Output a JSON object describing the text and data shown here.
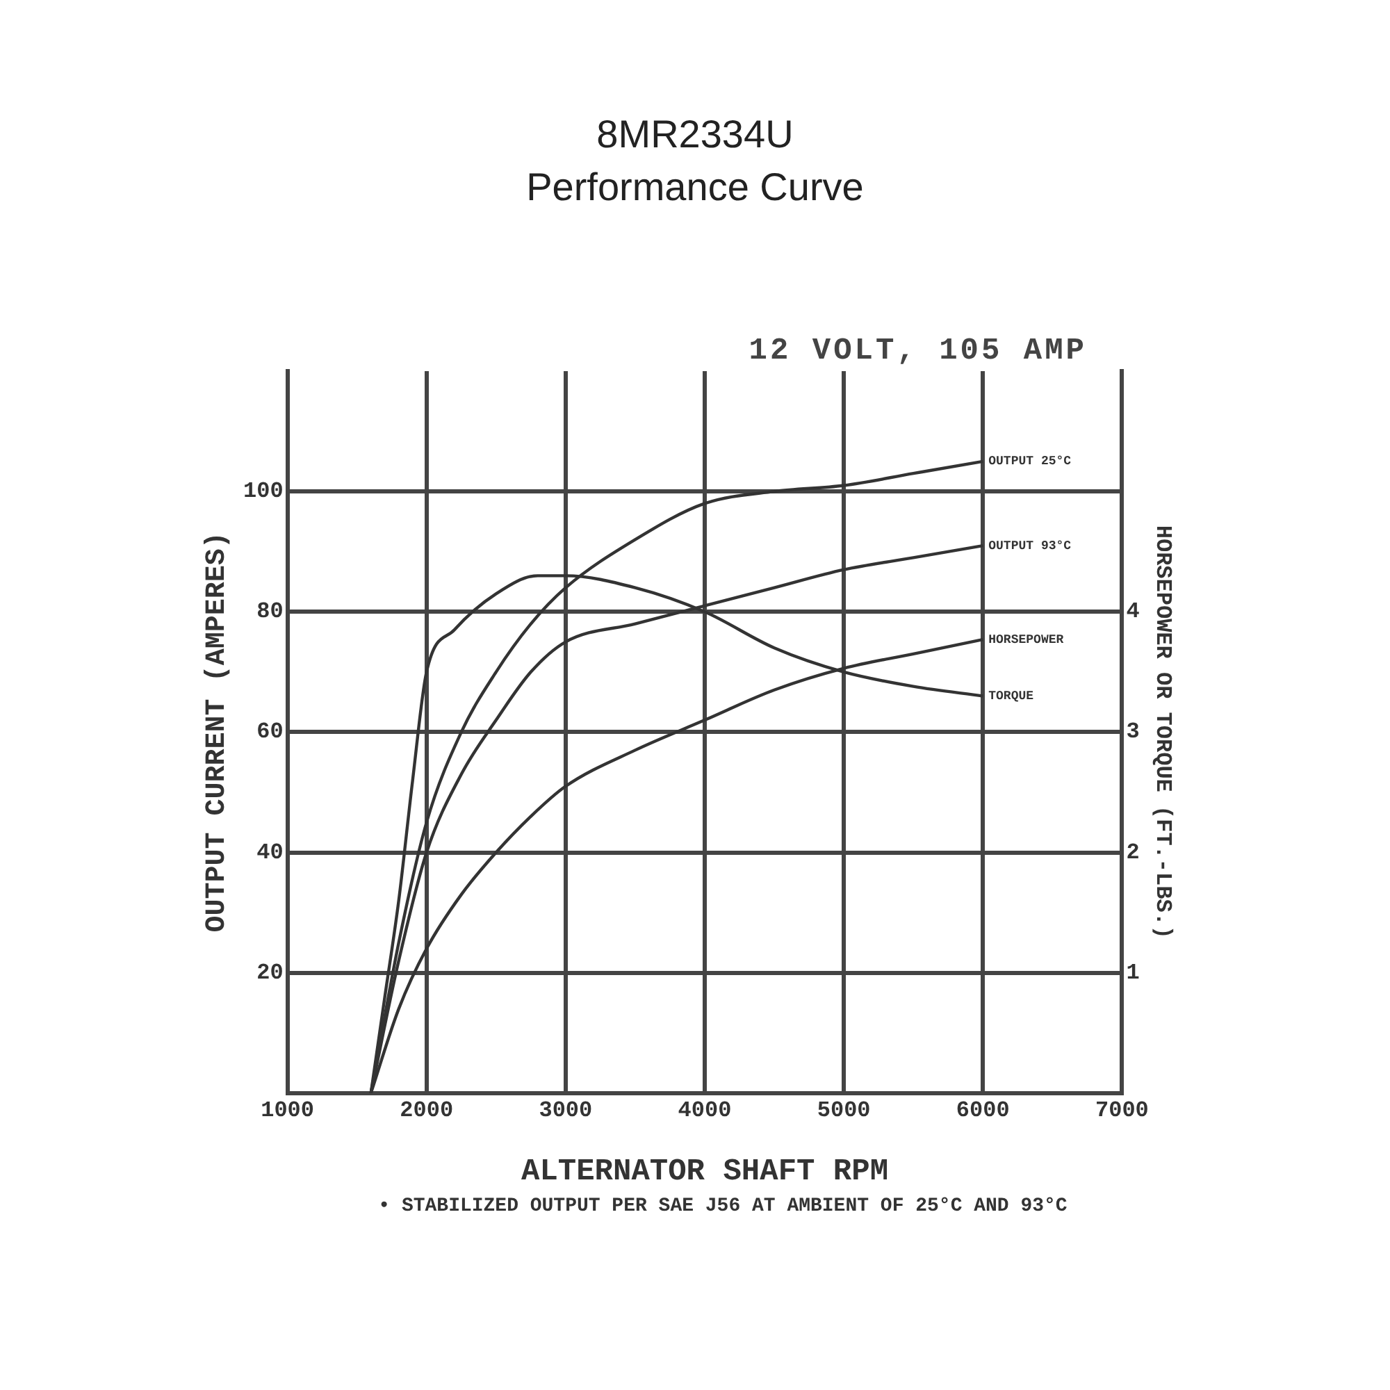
{
  "chart_data": {
    "type": "line",
    "title": "8MR2334U\nPerformance Curve",
    "subtitle": "12 VOLT, 105 AMP",
    "xlabel": "ALTERNATOR SHAFT RPM",
    "ylabel": "OUTPUT CURRENT (AMPERES)",
    "y2label": "HORSEPOWER OR TORQUE (FT.-LBS.)",
    "annotations": [
      "• STABILIZED OUTPUT PER SAE J56 AT AMBIENT OF 25°C AND 93°C"
    ],
    "xlim": [
      1000,
      7000
    ],
    "xticks": [
      1000,
      2000,
      3000,
      4000,
      5000,
      6000,
      7000
    ],
    "ylim": [
      0,
      120
    ],
    "yticks": [
      20,
      40,
      60,
      80,
      100
    ],
    "y2lim": [
      0,
      6
    ],
    "y2ticks": [
      1,
      2,
      3,
      4
    ],
    "grid": true,
    "legend": false,
    "marker": "none",
    "line_style": "solid",
    "series": [
      {
        "name": "OUTPUT 25°C",
        "color": "#333333",
        "x": [
          1600,
          1800,
          2000,
          2250,
          2500,
          2750,
          3000,
          3500,
          4000,
          4500,
          5000,
          5500,
          6000
        ],
        "values": [
          0,
          25,
          45,
          60,
          70,
          78,
          84,
          92,
          98,
          100,
          101,
          103,
          105
        ]
      },
      {
        "name": "OUTPUT 93°C",
        "color": "#333333",
        "x": [
          1600,
          1800,
          2000,
          2250,
          2500,
          2750,
          3000,
          3500,
          4000,
          4500,
          5000,
          5500,
          6000
        ],
        "values": [
          0,
          22,
          40,
          53,
          62,
          70,
          75,
          78,
          81,
          84,
          87,
          89,
          91
        ]
      },
      {
        "name": "HORSEPOWER",
        "color": "#333333",
        "axis": "y2",
        "x": [
          1600,
          1800,
          2000,
          2250,
          2500,
          2750,
          3000,
          3500,
          4000,
          4500,
          5000,
          5500,
          6000
        ],
        "values": [
          0,
          0.7,
          1.2,
          1.65,
          2.0,
          2.3,
          2.55,
          2.85,
          3.1,
          3.35,
          3.53,
          3.65,
          3.77
        ]
      },
      {
        "name": "TORQUE",
        "color": "#333333",
        "axis": "y2",
        "x": [
          1600,
          1700,
          1800,
          1900,
          2000,
          2200,
          2500,
          2800,
          3000,
          3500,
          4000,
          4500,
          5000,
          5500,
          6000
        ],
        "values": [
          0,
          0.8,
          1.6,
          2.6,
          3.5,
          3.85,
          4.15,
          4.3,
          4.3,
          4.2,
          4.0,
          3.7,
          3.5,
          3.38,
          3.3
        ]
      }
    ]
  }
}
